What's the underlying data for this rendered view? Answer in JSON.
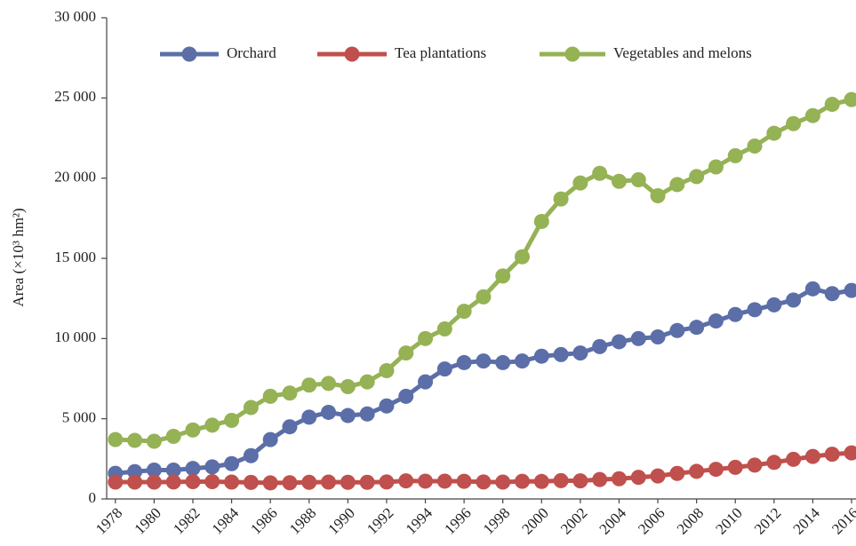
{
  "chart_data": {
    "type": "line",
    "y_label": "Area (×10³ hm²)",
    "x": [
      1978,
      1979,
      1980,
      1981,
      1982,
      1983,
      1984,
      1985,
      1986,
      1987,
      1988,
      1989,
      1990,
      1991,
      1992,
      1993,
      1994,
      1995,
      1996,
      1997,
      1998,
      1999,
      2000,
      2001,
      2002,
      2003,
      2004,
      2005,
      2006,
      2007,
      2008,
      2009,
      2010,
      2011,
      2012,
      2013,
      2014,
      2015,
      2016
    ],
    "series": [
      {
        "name": "Orchard",
        "color": "#5b6ea8",
        "values": [
          1600,
          1700,
          1800,
          1800,
          1900,
          2000,
          2200,
          2700,
          3700,
          4500,
          5100,
          5400,
          5200,
          5300,
          5800,
          6400,
          7300,
          8100,
          8500,
          8600,
          8500,
          8600,
          8900,
          9000,
          9100,
          9500,
          9800,
          10000,
          10100,
          10500,
          10700,
          11100,
          11500,
          11800,
          12100,
          12400,
          13100,
          12800,
          13000
        ]
      },
      {
        "name": "Tea plantations",
        "color": "#c0504d",
        "values": [
          1050,
          1050,
          1050,
          1060,
          1080,
          1080,
          1050,
          1030,
          1000,
          1010,
          1040,
          1050,
          1040,
          1040,
          1060,
          1130,
          1110,
          1110,
          1100,
          1060,
          1050,
          1100,
          1090,
          1140,
          1130,
          1210,
          1260,
          1350,
          1430,
          1590,
          1720,
          1850,
          1970,
          2110,
          2280,
          2470,
          2650,
          2790,
          2870
        ]
      },
      {
        "name": "Vegetables and melons",
        "color": "#95b255",
        "values": [
          3700,
          3650,
          3600,
          3900,
          4300,
          4600,
          4900,
          5700,
          6400,
          6600,
          7100,
          7200,
          7000,
          7300,
          8000,
          9100,
          10000,
          10600,
          11700,
          12600,
          13900,
          15100,
          17300,
          18700,
          19700,
          20300,
          19800,
          19900,
          18900,
          19600,
          20100,
          20700,
          21400,
          22000,
          22800,
          23400,
          23900,
          24600,
          24900
        ]
      }
    ],
    "xlim": [
      1977.55,
      2016
    ],
    "xticks": [
      1978,
      1980,
      1982,
      1984,
      1986,
      1988,
      1990,
      1992,
      1994,
      1996,
      1998,
      2000,
      2002,
      2004,
      2006,
      2008,
      2010,
      2012,
      2014,
      2016
    ],
    "ylim": [
      0,
      30000
    ],
    "yticks": [
      0,
      {
        "value": 5000,
        "label": "5 000"
      },
      {
        "value": 10000,
        "label": "10 000"
      },
      {
        "value": 15000,
        "label": "15 000"
      },
      {
        "value": 20000,
        "label": "20 000"
      },
      {
        "value": 25000,
        "label": "25 000"
      },
      {
        "value": 30000,
        "label": "30 000"
      }
    ],
    "legend": "top",
    "grid": false
  }
}
